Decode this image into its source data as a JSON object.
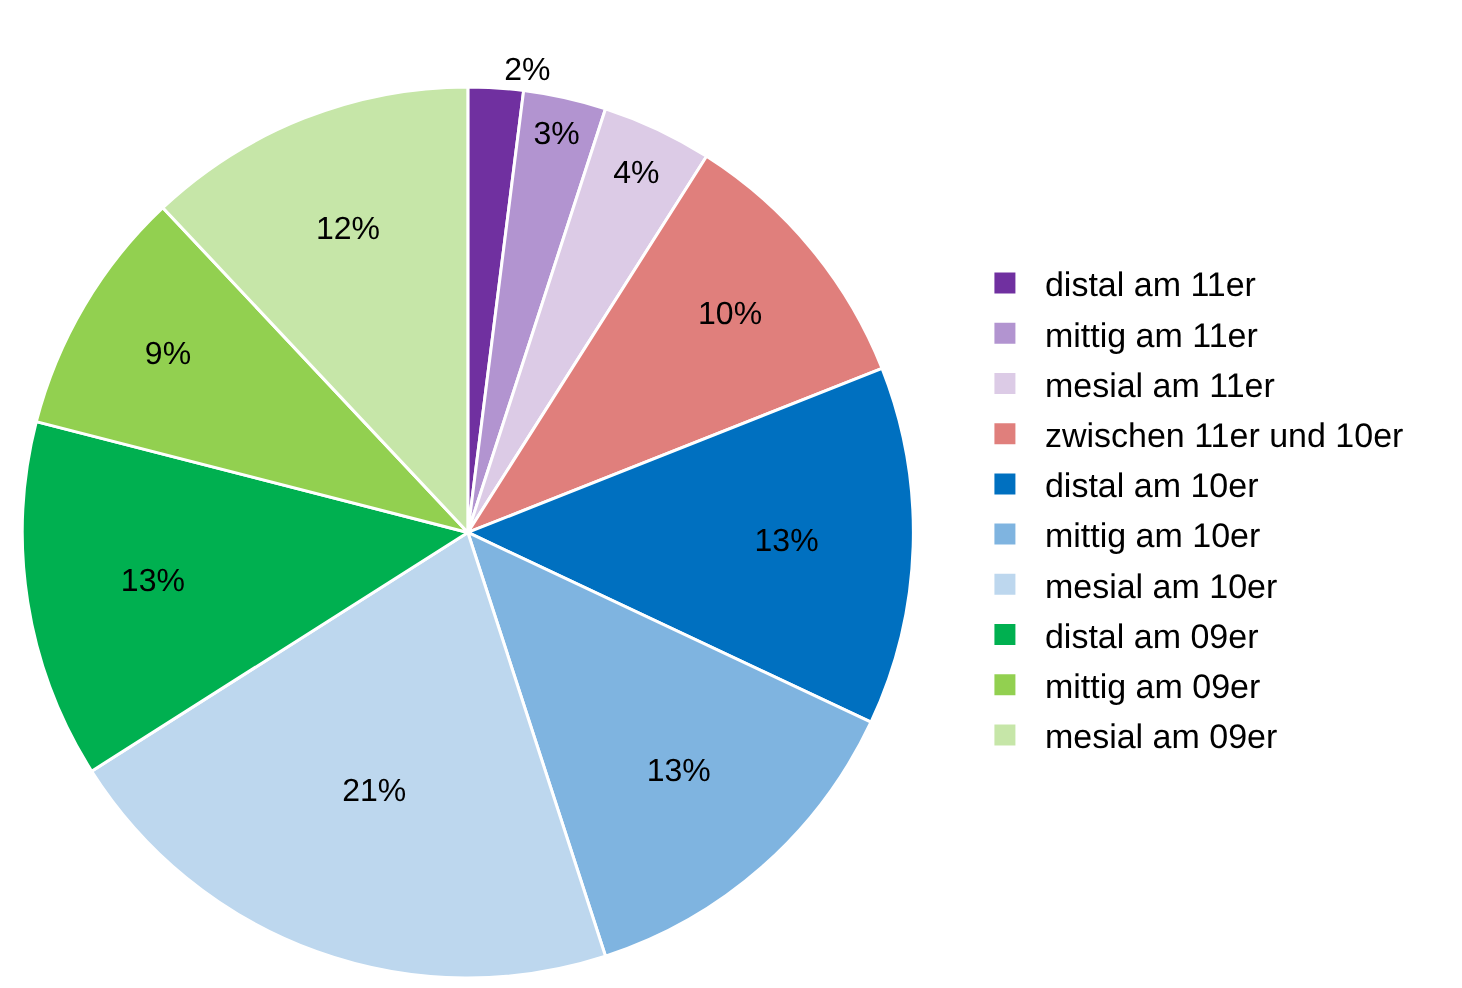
{
  "chart_data": {
    "type": "pie",
    "categories": [
      "distal am 11er",
      "mittig am 11er",
      "mesial am 11er",
      "zwischen 11er und 10er",
      "distal am 10er",
      "mittig am 10er",
      "mesial am 10er",
      "distal am 09er",
      "mittig am 09er",
      "mesial am 09er"
    ],
    "values": [
      2,
      3,
      4,
      10,
      13,
      13,
      21,
      13,
      9,
      12
    ],
    "value_labels": [
      "2%",
      "3%",
      "4%",
      "10%",
      "13%",
      "13%",
      "21%",
      "13%",
      "9%",
      "12%"
    ],
    "colors": [
      "#7030a0",
      "#b294d0",
      "#dccbe6",
      "#e07f7c",
      "#0070c0",
      "#7fb4e0",
      "#bdd7ee",
      "#00b050",
      "#92d050",
      "#c6e6a8"
    ],
    "legend": "right"
  }
}
